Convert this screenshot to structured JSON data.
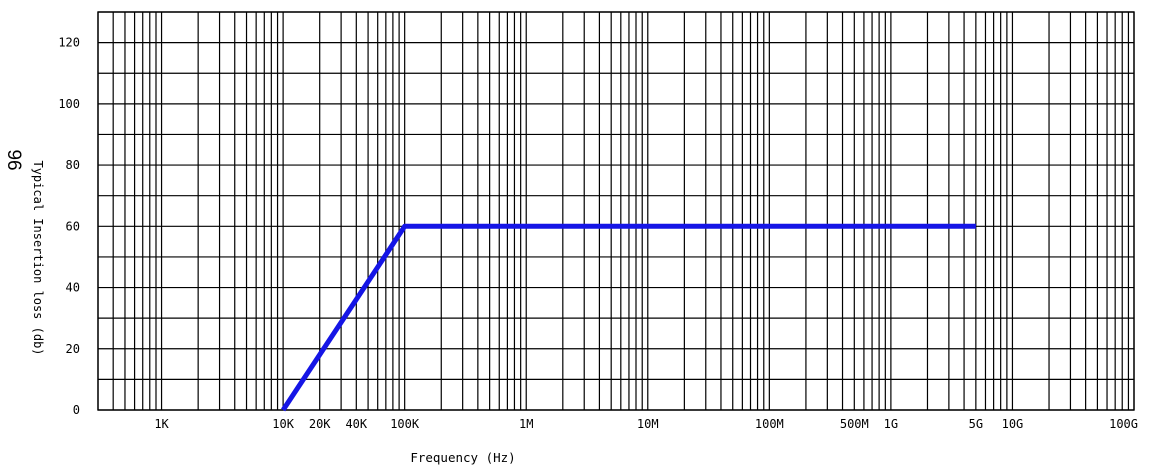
{
  "chart_data": {
    "type": "line",
    "title": "",
    "xlabel": "Frequency (Hz)",
    "ylabel": "Typical Insertion loss (db)",
    "x_scale": "log",
    "xlim": [
      300,
      100000000000
    ],
    "ylim": [
      0,
      130
    ],
    "grid": true,
    "x_tick_labels": [
      {
        "label": "1K",
        "value": 1000
      },
      {
        "label": "10K",
        "value": 10000
      },
      {
        "label": "20K",
        "value": 20000
      },
      {
        "label": "40K",
        "value": 40000
      },
      {
        "label": "100K",
        "value": 100000
      },
      {
        "label": "1M",
        "value": 1000000
      },
      {
        "label": "10M",
        "value": 10000000
      },
      {
        "label": "100M",
        "value": 100000000
      },
      {
        "label": "500M",
        "value": 500000000
      },
      {
        "label": "1G",
        "value": 1000000000
      },
      {
        "label": "5G",
        "value": 5000000000
      },
      {
        "label": "10G",
        "value": 10000000000
      },
      {
        "label": "100G",
        "value": 100000000000
      }
    ],
    "y_tick_labels": [
      {
        "label": "0",
        "value": 0
      },
      {
        "label": "20",
        "value": 20
      },
      {
        "label": "40",
        "value": 40
      },
      {
        "label": "60",
        "value": 60
      },
      {
        "label": "80",
        "value": 80
      },
      {
        "label": "100",
        "value": 100
      },
      {
        "label": "120",
        "value": 120
      }
    ],
    "series": [
      {
        "color": "#1515e6",
        "x": [
          10000,
          100000,
          5000000000
        ],
        "y": [
          0,
          60,
          60
        ]
      }
    ]
  },
  "page_marker": "96"
}
